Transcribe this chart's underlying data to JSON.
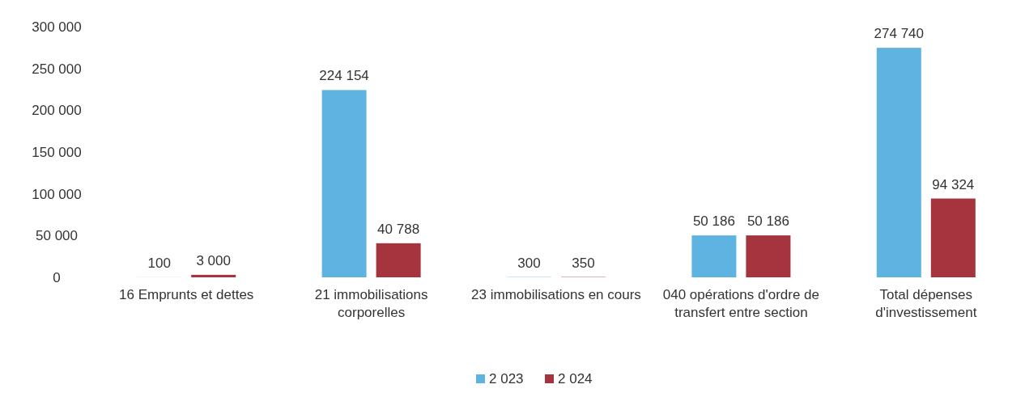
{
  "chart_data": {
    "type": "bar",
    "categories": [
      "16 Emprunts et dettes",
      "21 immobilisations corporelles",
      "23 immobilisations en cours",
      "040 opérations d'ordre de transfert entre section",
      "Total dépenses d'investissement"
    ],
    "series": [
      {
        "name": "2 023",
        "color": "#5fb3e0",
        "values": [
          100,
          224154,
          300,
          50186,
          274740
        ],
        "value_labels": [
          "100",
          "224 154",
          "300",
          "50 186",
          "274 740"
        ]
      },
      {
        "name": "2 024",
        "color": "#a5343f",
        "values": [
          3000,
          40788,
          350,
          50186,
          94324
        ],
        "value_labels": [
          "3 000",
          "40 788",
          "350",
          "50 186",
          "94 324"
        ]
      }
    ],
    "ylim": [
      0,
      300000
    ],
    "yticks": [
      {
        "value": 0,
        "label": "0"
      },
      {
        "value": 50000,
        "label": "50 000"
      },
      {
        "value": 100000,
        "label": "100 000"
      },
      {
        "value": 150000,
        "label": "150 000"
      },
      {
        "value": 200000,
        "label": "200 000"
      },
      {
        "value": 250000,
        "label": "250 000"
      },
      {
        "value": 300000,
        "label": "300 000"
      }
    ],
    "legend": "bottom"
  }
}
